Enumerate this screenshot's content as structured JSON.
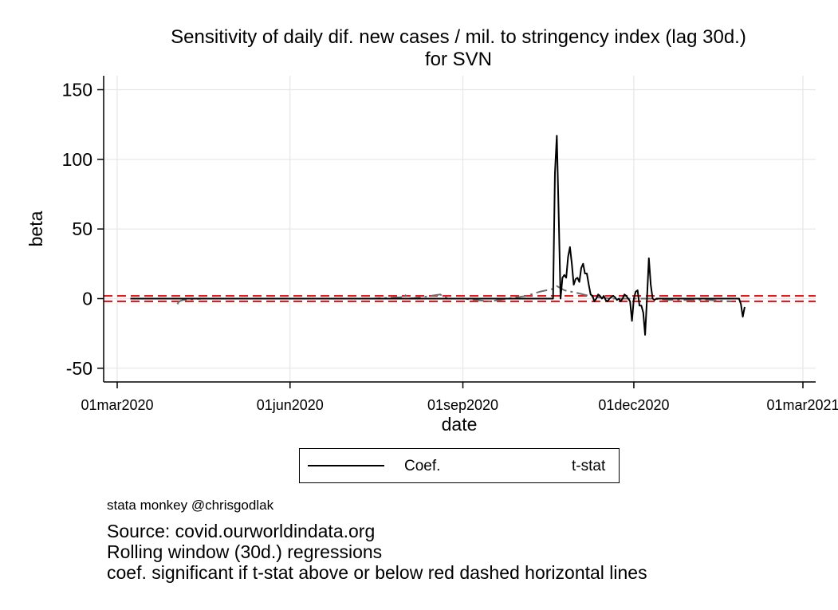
{
  "chart_data": {
    "type": "line",
    "title": "Sensitivity of daily dif. new cases / mil. to stringency index (lag 30d.)",
    "subtitle": "for SVN",
    "xlabel": "date",
    "ylabel": "beta",
    "xlim": [
      "2020-03-01",
      "2021-03-01"
    ],
    "ylim": [
      -60,
      160
    ],
    "x_ticks": [
      "01mar2020",
      "01jun2020",
      "01sep2020",
      "01dec2020",
      "01mar2021"
    ],
    "y_ticks": [
      -50,
      0,
      50,
      100,
      150
    ],
    "grid": true,
    "legend_position": "bottom",
    "reference_lines": [
      {
        "y": 1.96,
        "style": "dashed",
        "color": "#e41a1c"
      },
      {
        "y": -1.96,
        "style": "dashed",
        "color": "#e41a1c"
      }
    ],
    "series": [
      {
        "name": "Coef.",
        "color": "#000000",
        "style": "solid",
        "points": [
          [
            "2020-03-08",
            0
          ],
          [
            "2020-04-01",
            0
          ],
          [
            "2020-05-01",
            0
          ],
          [
            "2020-06-01",
            0
          ],
          [
            "2020-07-01",
            0
          ],
          [
            "2020-08-01",
            0
          ],
          [
            "2020-09-01",
            0
          ],
          [
            "2020-10-01",
            0
          ],
          [
            "2020-10-19",
            0
          ],
          [
            "2020-10-20",
            90
          ],
          [
            "2020-10-21",
            117
          ],
          [
            "2020-10-22",
            60
          ],
          [
            "2020-10-23",
            0
          ],
          [
            "2020-10-24",
            15
          ],
          [
            "2020-10-25",
            17
          ],
          [
            "2020-10-26",
            15
          ],
          [
            "2020-10-27",
            30
          ],
          [
            "2020-10-28",
            37
          ],
          [
            "2020-10-29",
            25
          ],
          [
            "2020-10-30",
            10
          ],
          [
            "2020-10-31",
            14
          ],
          [
            "2020-11-01",
            15
          ],
          [
            "2020-11-02",
            12
          ],
          [
            "2020-11-03",
            22
          ],
          [
            "2020-11-04",
            25
          ],
          [
            "2020-11-05",
            18
          ],
          [
            "2020-11-06",
            18
          ],
          [
            "2020-11-07",
            10
          ],
          [
            "2020-11-08",
            3
          ],
          [
            "2020-11-09",
            2
          ],
          [
            "2020-11-10",
            -2
          ],
          [
            "2020-11-11",
            0
          ],
          [
            "2020-11-12",
            3
          ],
          [
            "2020-11-13",
            2
          ],
          [
            "2020-11-14",
            0
          ],
          [
            "2020-11-15",
            2
          ],
          [
            "2020-11-16",
            -1
          ],
          [
            "2020-11-17",
            -2
          ],
          [
            "2020-11-18",
            0
          ],
          [
            "2020-11-19",
            1
          ],
          [
            "2020-11-20",
            2
          ],
          [
            "2020-11-21",
            1
          ],
          [
            "2020-11-22",
            -1
          ],
          [
            "2020-11-23",
            0
          ],
          [
            "2020-11-24",
            -2
          ],
          [
            "2020-11-25",
            0
          ],
          [
            "2020-11-26",
            3
          ],
          [
            "2020-11-27",
            2
          ],
          [
            "2020-11-28",
            0
          ],
          [
            "2020-11-29",
            -2
          ],
          [
            "2020-11-30",
            -16
          ],
          [
            "2020-12-01",
            0
          ],
          [
            "2020-12-02",
            5
          ],
          [
            "2020-12-03",
            6
          ],
          [
            "2020-12-04",
            -5
          ],
          [
            "2020-12-05",
            -5
          ],
          [
            "2020-12-06",
            -10
          ],
          [
            "2020-12-07",
            -26
          ],
          [
            "2020-12-08",
            0
          ],
          [
            "2020-12-09",
            29
          ],
          [
            "2020-12-10",
            10
          ],
          [
            "2020-12-11",
            0
          ],
          [
            "2020-12-12",
            -1
          ],
          [
            "2020-12-13",
            0
          ],
          [
            "2020-12-20",
            0
          ],
          [
            "2021-01-01",
            0
          ],
          [
            "2021-01-20",
            0
          ],
          [
            "2021-01-26",
            0
          ],
          [
            "2021-01-27",
            -4
          ],
          [
            "2021-01-28",
            -13
          ],
          [
            "2021-01-29",
            -6
          ]
        ]
      },
      {
        "name": "t-stat",
        "color": "#6e6e6e",
        "style": "dash-dot",
        "points": [
          [
            "2020-04-02",
            -4
          ],
          [
            "2020-04-03",
            -2
          ],
          [
            "2020-04-05",
            -1
          ],
          [
            "2020-04-15",
            0
          ],
          [
            "2020-05-15",
            0
          ],
          [
            "2020-06-15",
            0
          ],
          [
            "2020-07-15",
            0
          ],
          [
            "2020-07-30",
            1
          ],
          [
            "2020-08-01",
            3
          ],
          [
            "2020-08-03",
            0
          ],
          [
            "2020-08-10",
            1
          ],
          [
            "2020-08-15",
            2
          ],
          [
            "2020-08-20",
            3
          ],
          [
            "2020-08-22",
            1
          ],
          [
            "2020-08-25",
            0
          ],
          [
            "2020-09-01",
            0
          ],
          [
            "2020-09-15",
            -2
          ],
          [
            "2020-09-25",
            0
          ],
          [
            "2020-10-05",
            2
          ],
          [
            "2020-10-12",
            5
          ],
          [
            "2020-10-19",
            7
          ],
          [
            "2020-10-21",
            9
          ],
          [
            "2020-10-25",
            6
          ],
          [
            "2020-11-01",
            4
          ],
          [
            "2020-11-10",
            1
          ],
          [
            "2020-11-20",
            0
          ],
          [
            "2020-12-01",
            0
          ],
          [
            "2020-12-10",
            0
          ],
          [
            "2020-12-20",
            -1
          ],
          [
            "2021-01-10",
            -1
          ],
          [
            "2021-01-22",
            -2
          ]
        ]
      }
    ]
  },
  "legend": {
    "coef_label": "Coef.",
    "tstat_label": "t-stat"
  },
  "notes": {
    "credit": "stata monkey @chrisgodlak",
    "source": "Source: covid.ourworldindata.org",
    "method": "Rolling window (30d.) regressions",
    "significance": "coef. significant if t-stat above or below red dashed horizontal lines"
  }
}
